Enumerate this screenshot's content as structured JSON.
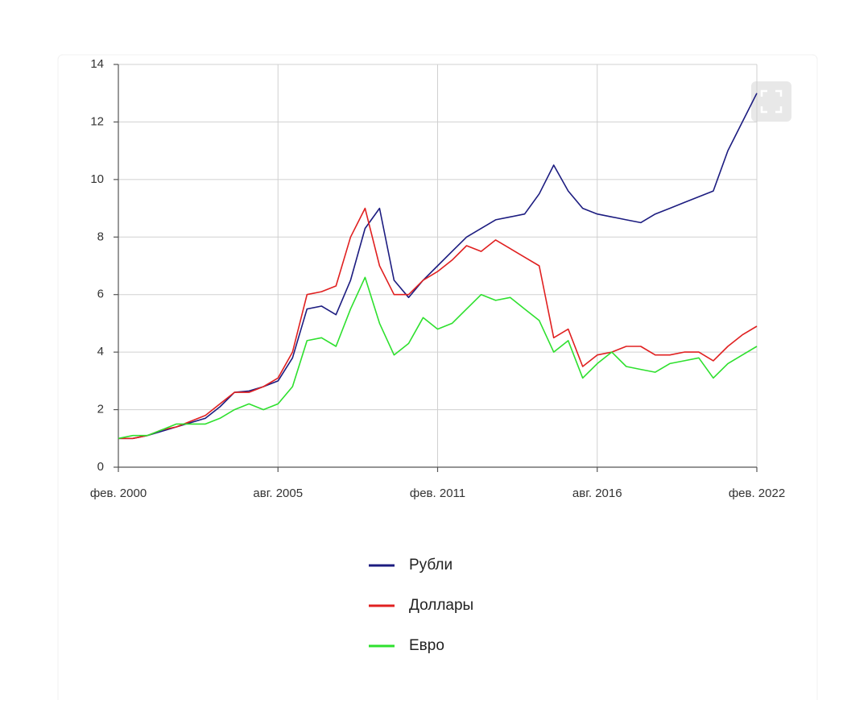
{
  "chart_data": {
    "type": "line",
    "categories": [
      "фев. 2000",
      null,
      null,
      null,
      null,
      null,
      null,
      null,
      null,
      null,
      null,
      "авг. 2005",
      null,
      null,
      null,
      null,
      null,
      null,
      null,
      null,
      null,
      null,
      "фев. 2011",
      null,
      null,
      null,
      null,
      null,
      null,
      null,
      null,
      null,
      null,
      "авг. 2016",
      null,
      null,
      null,
      null,
      null,
      null,
      null,
      null,
      null,
      null,
      "фев. 2022"
    ],
    "series": [
      {
        "name": "Рубли",
        "color": "#1c1c80",
        "values": [
          1.0,
          1.0,
          1.1,
          1.25,
          1.4,
          1.55,
          1.7,
          2.1,
          2.6,
          2.65,
          2.8,
          3.0,
          3.8,
          5.5,
          5.6,
          5.3,
          6.5,
          8.3,
          9.0,
          6.5,
          5.9,
          6.5,
          7.0,
          7.5,
          8.0,
          8.3,
          8.6,
          8.7,
          8.8,
          9.5,
          10.5,
          9.6,
          9.0,
          8.8,
          8.7,
          8.6,
          8.5,
          8.8,
          9.0,
          9.2,
          9.4,
          9.6,
          11.0,
          12.0,
          13.0
        ]
      },
      {
        "name": "Доллары",
        "color": "#e02020",
        "values": [
          1.0,
          1.0,
          1.1,
          1.3,
          1.4,
          1.6,
          1.8,
          2.2,
          2.6,
          2.6,
          2.8,
          3.1,
          4.0,
          6.0,
          6.1,
          6.3,
          8.0,
          9.0,
          7.0,
          6.0,
          6.0,
          6.5,
          6.8,
          7.2,
          7.7,
          7.5,
          7.9,
          7.6,
          7.3,
          7.0,
          4.5,
          4.8,
          3.5,
          3.9,
          4.0,
          4.2,
          4.2,
          3.9,
          3.9,
          4.0,
          4.0,
          3.7,
          4.2,
          4.6,
          4.9
        ]
      },
      {
        "name": "Евро",
        "color": "#2ee02e",
        "values": [
          1.0,
          1.1,
          1.1,
          1.3,
          1.5,
          1.5,
          1.5,
          1.7,
          2.0,
          2.2,
          2.0,
          2.2,
          2.8,
          4.4,
          4.5,
          4.2,
          5.5,
          6.6,
          5.0,
          3.9,
          4.3,
          5.2,
          4.8,
          5.0,
          5.5,
          6.0,
          5.8,
          5.9,
          5.5,
          5.1,
          4.0,
          4.4,
          3.1,
          3.6,
          4.0,
          3.5,
          3.4,
          3.3,
          3.6,
          3.7,
          3.8,
          3.1,
          3.6,
          3.9,
          4.2
        ]
      }
    ],
    "ylim": [
      0,
      14
    ],
    "yticks": [
      0,
      2,
      4,
      6,
      8,
      10,
      12,
      14
    ],
    "grid": true
  }
}
